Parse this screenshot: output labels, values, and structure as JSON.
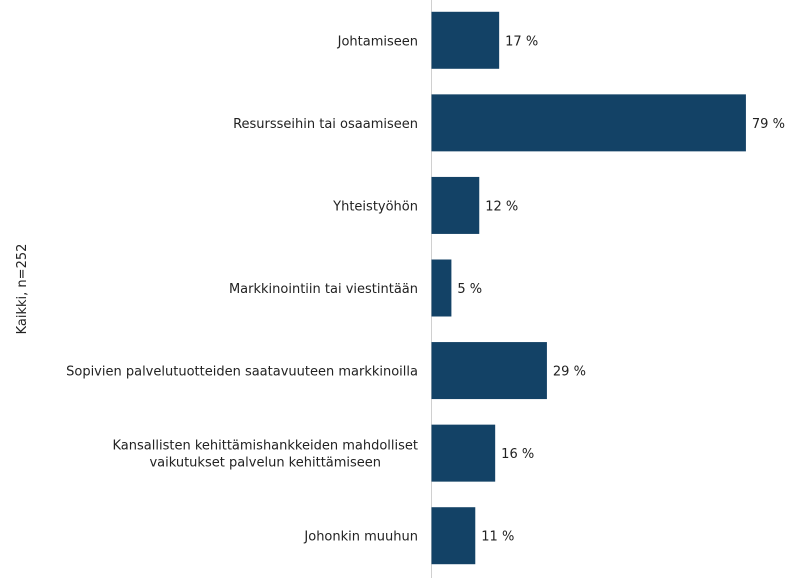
{
  "chart_data": {
    "type": "bar",
    "orientation": "horizontal",
    "ylabel": "Kaikki, n=252",
    "categories": [
      [
        "Johtamiseen"
      ],
      [
        "Resursseihin tai osaamiseen"
      ],
      [
        "Yhteistyöhön"
      ],
      [
        "Markkinointiin tai viestintään"
      ],
      [
        "Sopivien palvelutuotteiden saatavuuteen markkinoilla"
      ],
      [
        "Kansallisten kehittämishankkeiden mahdolliset",
        "vaikutukset palvelun kehittämiseen"
      ],
      [
        "Johonkin muuhun"
      ]
    ],
    "values": [
      17,
      79,
      12,
      5,
      29,
      16,
      11
    ],
    "value_labels": [
      "17 %",
      "79 %",
      "12 %",
      "5 %",
      "29 %",
      "16 %",
      "11 %"
    ],
    "xlim": [
      0,
      100
    ],
    "grid": false,
    "colors": {
      "bar": "#134266",
      "axis": "#d0d0d0"
    }
  }
}
